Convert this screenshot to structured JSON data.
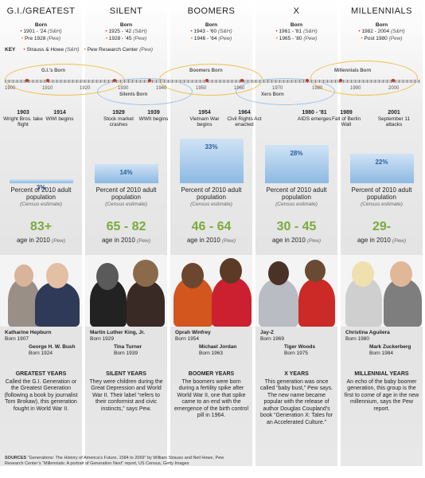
{
  "key": {
    "label": "KEY",
    "strauss": "Strauss & Howe",
    "strauss_abbr": "(S&H)",
    "pew": "Pew Research Center",
    "pew_abbr": "(Pew)"
  },
  "timeline": {
    "years": [
      "1900",
      "1910",
      "1920",
      "1930",
      "1940",
      "1950",
      "1960",
      "1970",
      "1980",
      "1990",
      "2000"
    ],
    "bands": {
      "gi": "G.I.'s Born",
      "silent": "Silents Born",
      "boomers": "Boomers Born",
      "x": "Xers Born",
      "millennials": "Millennials Born"
    }
  },
  "events": [
    {
      "year": "1903",
      "text": "Wright Bros. take flight"
    },
    {
      "year": "1914",
      "text": "WWI begins"
    },
    {
      "year": "1929",
      "text": "Stock market crashes"
    },
    {
      "year": "1939",
      "text": "WWII begins"
    },
    {
      "year": "1954",
      "text": "Vietnam War begins"
    },
    {
      "year": "1964",
      "text": "Civil Rights Act enacted"
    },
    {
      "year": "1980 - '81",
      "text": "AIDS emerges"
    },
    {
      "year": "1989",
      "text": "Fall of Berlin Wall"
    },
    {
      "year": "2001",
      "text": "September 11 attacks"
    }
  ],
  "common": {
    "born": "Born",
    "pct_text": "Percent of 2010 adult population",
    "census": "(Census estimate)",
    "age_cap": "age in 2010",
    "pew": "(Pew)"
  },
  "generations": [
    {
      "title": "G.I./GREATEST",
      "born_sh": "1901 - '24",
      "born_pew": "Pre 1928",
      "percent": 3,
      "percent_label": "3%",
      "age": "83+",
      "people": [
        {
          "name": "Katharine Hepburn",
          "born": "Born 1907"
        },
        {
          "name": "George H. W. Bush",
          "born": "Born 1924"
        }
      ],
      "story_title": "GREATEST YEARS",
      "story": "Called the G.I. Generation or the Greatest Generation (following a book by journalist Tom Brokaw), this generation fought in World War II."
    },
    {
      "title": "SILENT",
      "born_sh": "1925 - '42",
      "born_pew": "1928 - '45",
      "percent": 14,
      "percent_label": "14%",
      "age": "65 - 82",
      "people": [
        {
          "name": "Martin Luther King, Jr.",
          "born": "Born 1929"
        },
        {
          "name": "Tina Turner",
          "born": "Born 1939"
        }
      ],
      "story_title": "SILENT YEARS",
      "story": "They were children during the Great Depression and World War II. Their label “refers to their conformist and civic instincts,” says Pew."
    },
    {
      "title": "BOOMERS",
      "born_sh": "1943 - '60",
      "born_pew": "1946 - '64",
      "percent": 33,
      "percent_label": "33%",
      "age": "46 - 64",
      "people": [
        {
          "name": "Oprah Winfrey",
          "born": "Born 1954"
        },
        {
          "name": "Michael Jordan",
          "born": "Born 1963"
        }
      ],
      "story_title": "BOOMER YEARS",
      "story": "The boomers were born during a fertility spike after World War II, one that spike came to an end with the emergence of the birth control pill in 1964."
    },
    {
      "title": "X",
      "born_sh": "1961 - '81",
      "born_pew": "1965 - '80",
      "percent": 28,
      "percent_label": "28%",
      "age": "30 - 45",
      "people": [
        {
          "name": "Jay-Z",
          "born": "Born 1969"
        },
        {
          "name": "Tiger Woods",
          "born": "Born 1975"
        }
      ],
      "story_title": "X YEARS",
      "story": "This generation was once called “baby bust,” Pew says. The new name became popular with the release of author Douglas Coupland’s book “Generation X: Tales for an Accelerated Culture.”"
    },
    {
      "title": "MILLENNIALS",
      "born_sh": "1982 - 2004",
      "born_pew": "Post 1980",
      "percent": 22,
      "percent_label": "22%",
      "age": "29-",
      "people": [
        {
          "name": "Christina Aguilera",
          "born": "Born 1980"
        },
        {
          "name": "Mark Zuckerberg",
          "born": "Born 1984"
        }
      ],
      "story_title": "MILLENNIAL YEARS",
      "story": "An echo of the baby boomer generation, this group is the first to come of age in the new millennium, says the Pew report."
    }
  ],
  "sources": {
    "label": "SOURCES",
    "text": "“Generations: The History of America’s Future, 1584 to 2069” by William Strauss and Neil Howe, Pew Research Center’s “Millennials: A portrait of Generation Next” report, US Census, Getty Images"
  },
  "colors": {
    "strauss_dot": "#d13b2e",
    "pew_dot": "#e87d1e",
    "age_green": "#7bab3c",
    "bar_blue": "#8db9e3"
  }
}
